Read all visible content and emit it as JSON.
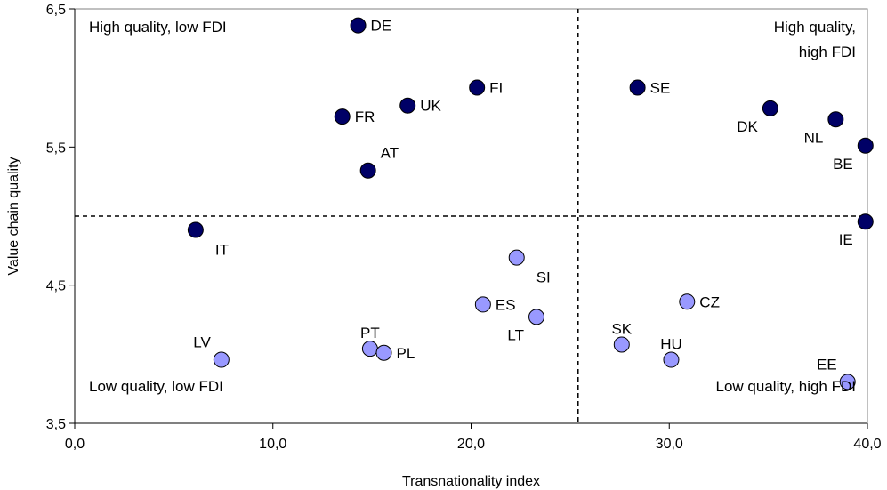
{
  "chart_data": {
    "type": "scatter",
    "xlabel": "Transnationality index",
    "ylabel": "Value chain quality",
    "xlim": [
      0,
      40
    ],
    "ylim": [
      3.5,
      6.5
    ],
    "x_ticks": [
      "0,0",
      "10,0",
      "20,0",
      "30,0",
      "40,0"
    ],
    "y_ticks": [
      "3,5",
      "4,5",
      "5,5",
      "6,5"
    ],
    "grid": false,
    "reference_lines": {
      "x": 25.4,
      "y": 5.0,
      "style": "dashed"
    },
    "quadrant_labels": [
      {
        "lines": [
          "High quality, low  FDI"
        ],
        "position": "top-left"
      },
      {
        "lines": [
          "High quality,",
          "high FDI"
        ],
        "position": "top-right"
      },
      {
        "lines": [
          "Low  quality, low FDI"
        ],
        "position": "bottom-left"
      },
      {
        "lines": [
          "Low  quality, high FDI"
        ],
        "position": "bottom-right"
      }
    ],
    "series": [
      {
        "color": "#000066",
        "points": [
          {
            "label": "DE",
            "x": 14.3,
            "y": 6.38,
            "label_side": "right"
          },
          {
            "label": "FI",
            "x": 20.3,
            "y": 5.93,
            "label_side": "right"
          },
          {
            "label": "SE",
            "x": 28.4,
            "y": 5.93,
            "label_side": "right"
          },
          {
            "label": "UK",
            "x": 16.8,
            "y": 5.8,
            "label_side": "right"
          },
          {
            "label": "FR",
            "x": 13.5,
            "y": 5.72,
            "label_side": "right"
          },
          {
            "label": "DK",
            "x": 35.1,
            "y": 5.78,
            "label_side": "below-left"
          },
          {
            "label": "NL",
            "x": 38.4,
            "y": 5.7,
            "label_side": "below-left"
          },
          {
            "label": "BE",
            "x": 39.9,
            "y": 5.51,
            "label_side": "below-left"
          },
          {
            "label": "AT",
            "x": 14.8,
            "y": 5.33,
            "label_side": "above-right"
          },
          {
            "label": "IT",
            "x": 6.1,
            "y": 4.9,
            "label_side": "below-right"
          },
          {
            "label": "IE",
            "x": 39.9,
            "y": 4.96,
            "label_side": "below-left"
          }
        ]
      },
      {
        "color": "#9999ff",
        "points": [
          {
            "label": "SI",
            "x": 22.3,
            "y": 4.7,
            "label_side": "below-right"
          },
          {
            "label": "ES",
            "x": 20.6,
            "y": 4.36,
            "label_side": "right"
          },
          {
            "label": "LT",
            "x": 23.3,
            "y": 4.27,
            "label_side": "below-left"
          },
          {
            "label": "CZ",
            "x": 30.9,
            "y": 4.38,
            "label_side": "right"
          },
          {
            "label": "SK",
            "x": 27.6,
            "y": 4.07,
            "label_side": "above"
          },
          {
            "label": "HU",
            "x": 30.1,
            "y": 3.96,
            "label_side": "above"
          },
          {
            "label": "PT",
            "x": 14.9,
            "y": 4.04,
            "label_side": "above"
          },
          {
            "label": "PL",
            "x": 15.6,
            "y": 4.01,
            "label_side": "right"
          },
          {
            "label": "LV",
            "x": 7.4,
            "y": 3.96,
            "label_side": "above-left"
          },
          {
            "label": "EE",
            "x": 39.0,
            "y": 3.8,
            "label_side": "above-left"
          }
        ]
      }
    ]
  }
}
